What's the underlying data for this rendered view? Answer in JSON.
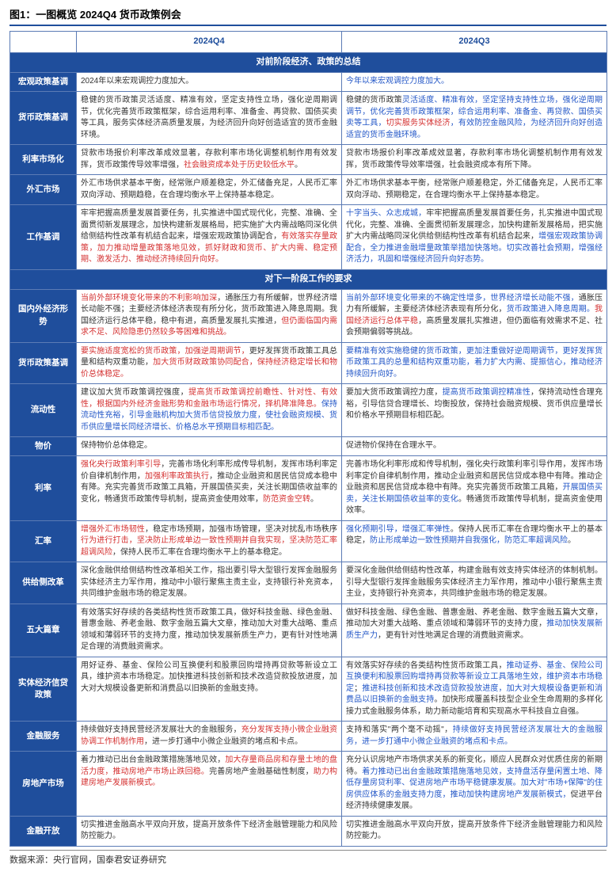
{
  "figureTitle": "图1：一图概览 2024Q4 货币政策例会",
  "colHeaders": [
    "2024Q4",
    "2024Q3"
  ],
  "section1": "对前阶段经济、政策的总结",
  "section2": "对下一阶段工作的要求",
  "sourceLabel": "数据来源：央行官网，国泰君安证券研究",
  "rows1": [
    {
      "label": "宏观政策基调",
      "q4": [
        {
          "t": "2024年以来宏观调控力度加大。",
          "c": ""
        }
      ],
      "q3": [
        {
          "t": "今年以来宏观调控力度加大。",
          "c": "blue"
        }
      ]
    },
    {
      "label": "货币政策基调",
      "q4": [
        {
          "t": "稳健的货币政策灵活适度、精准有效，坚定支持性立场，强化逆周期调节，优化完善货币政策框架，综合运用利率、准备金、再贷款、国债买卖等工具，服务实体经济高质量发展，为经济回升向好创造适宜的货币金融环境。",
          "c": ""
        }
      ],
      "q3": [
        {
          "t": "稳健的货币政策",
          "c": ""
        },
        {
          "t": "灵活适度、精准有效，坚定坚持支持性立场，强化逆周期调节，优化完善货币政策框架，综合运用利率、准备金、再贷款、国债买卖等工具，",
          "c": "blue"
        },
        {
          "t": "切实服务实体经济",
          "c": "red"
        },
        {
          "t": "，有效防控金融风险，为经济回升向好创造适宜的货币金融环境。",
          "c": "blue"
        }
      ]
    },
    {
      "label": "利率市场化",
      "q4": [
        {
          "t": "贷款市场报价利率改革成效显著，存款利率市场化调整机制作用有效发挥，货币政策传导效率增强，",
          "c": ""
        },
        {
          "t": "社会融资成本处于历史较低水平",
          "c": "red"
        },
        {
          "t": "。",
          "c": ""
        }
      ],
      "q3": [
        {
          "t": "贷款市场报价利率改革成效显著，存款利率市场化调整机制作用有效发挥，货币政策传导效率增强，社会融资成本有所下降。",
          "c": ""
        }
      ]
    },
    {
      "label": "外汇市场",
      "q4": [
        {
          "t": "外汇市场供求基本平衡，经常账户顺差稳定，外汇储备充足，人民币汇率双向浮动、预期趋稳，在合理均衡水平上保持基本稳定。",
          "c": ""
        }
      ],
      "q3": [
        {
          "t": "外汇市场供求基本平衡，经常账户顺差稳定，外汇储备充足，人民币汇率双向浮动、预期稳定，在合理均衡水平上保持基本稳定。",
          "c": ""
        }
      ]
    },
    {
      "label": "工作基调",
      "q4": [
        {
          "t": "牢牢把握高质量发展首要任务，扎实推进中国式现代化，完整、准确、全面贯彻新发展理念，加快构建新发展格局，把实施扩大内需战略同深化供给侧结构性改革有机结合起来，增强宏观政策协调配合，",
          "c": ""
        },
        {
          "t": "有效落实存量政策，加力推动增量政策落地见效，抓好财政和货币、扩大内需、稳定预期、激发活力、推动经济持续回升向好。",
          "c": "red"
        }
      ],
      "q3": [
        {
          "t": "十字当头、众志成城，",
          "c": "blue"
        },
        {
          "t": "牢牢把握高质量发展首要任务，扎实推进中国式现代化，完整、准确、全面贯彻新发展理念，加快构建新发展格局，把实施扩大内需战略同深化供给侧结构性改革有机结合起来，",
          "c": ""
        },
        {
          "t": "增强宏观政策协调配合，全力推进金融增量政策举措加快落地。切实改善社会预期，增强经济活力，巩固和增强经济回升向好态势。",
          "c": "blue"
        }
      ]
    }
  ],
  "rows2": [
    {
      "label": "国内外经济形势",
      "q4": [
        {
          "t": "当前外部环境变化带来的不利影响加深",
          "c": "red"
        },
        {
          "t": "，通胀压力有所缓解，世界经济增长动能不强；主要经济体经济表现有所分化，货币政策进入降息周期。我国经济运行总体平稳，稳中有进，高质量发展扎实推进，",
          "c": ""
        },
        {
          "t": "但仍面临国内需求不足、风险隐患仍然较多等困难和挑战。",
          "c": "red"
        }
      ],
      "q3": [
        {
          "t": "当前外部环境变化带来的不确定性增多，世界经济增长动能不强，",
          "c": "blue"
        },
        {
          "t": "通胀压力有所缓解，主要经济体经济表现有所分化，",
          "c": ""
        },
        {
          "t": "货币政策进入降息周期。",
          "c": "blue"
        },
        {
          "t": "我国经济运行总体平稳",
          "c": "red"
        },
        {
          "t": "，高质量发展扎实推进，但仍面临有效需求不足、社会预期偏弱等挑战。",
          "c": ""
        }
      ]
    },
    {
      "label": "货币政策基调",
      "q4": [
        {
          "t": "要实施适度宽松的货币政策，加强逆周期调节，",
          "c": "red"
        },
        {
          "t": "更好发挥货币政策工具总量和结构双重功能，",
          "c": ""
        },
        {
          "t": "加大货币财政政策协同配合，保持经济稳定增长和物价总体稳定。",
          "c": "red"
        }
      ],
      "q3": [
        {
          "t": "要精准有效实施稳健的货币政策，更加注重做好逆周期调节，更好发挥货币政策工具的总量和结构双重功能，着力扩大内需、提振信心，推动经济持续回升向好。",
          "c": "blue"
        }
      ]
    },
    {
      "label": "流动性",
      "q4": [
        {
          "t": "建议加大货币政策调控强度，",
          "c": ""
        },
        {
          "t": "提高货币政策调控前瞻性、针对性、有效性，根据国内外经济金融形势和金融市场运行情况，择机降准降息。",
          "c": "red"
        },
        {
          "t": "保持流动性充裕，引导金融机构加大货币信贷投放力度，使社会融资规模、货币供应量增长同经济增长、价格总水平预期目标相匹配。",
          "c": "blue"
        }
      ],
      "q3": [
        {
          "t": "要加大货币政策调控力度，",
          "c": ""
        },
        {
          "t": "提高货币政策调控精准性",
          "c": "blue"
        },
        {
          "t": "，保持流动性合理充裕，引导信贷合理增长、均衡投放，保持社会融资规模、货币供应量增长和价格水平预期目标相匹配。",
          "c": ""
        }
      ]
    },
    {
      "label": "物价",
      "q4": [
        {
          "t": "保持物价总体稳定。",
          "c": ""
        }
      ],
      "q3": [
        {
          "t": "促进物价保持在合理水平。",
          "c": ""
        }
      ]
    },
    {
      "label": "利率",
      "q4": [
        {
          "t": "强化央行政策利率引导",
          "c": "red"
        },
        {
          "t": "，完善市场化利率形成传导机制，发挥市场利率定价自律机制作用，",
          "c": ""
        },
        {
          "t": "加强利率政策执行",
          "c": "red"
        },
        {
          "t": "，推动企业融资和居民信贷成本稳中有降。充实完善货币政策工具箱，开展国债买卖，关注长期国债收益率的变化，畅通货币政策传导机制，提高资金使用效率，",
          "c": ""
        },
        {
          "t": "防范资金空转",
          "c": "red"
        },
        {
          "t": "。",
          "c": ""
        }
      ],
      "q3": [
        {
          "t": "完善市场化利率形成和传导机制，强化央行政策利率引导作用，发挥市场利率定价自律机制作用，推动企业融资和居民信贷成本稳中有降。推动企业融资和居民信贷成本稳中有降。充实完善货币政策工具箱，",
          "c": ""
        },
        {
          "t": "开展国债买卖，关注长期国债收益率的变化",
          "c": "blue"
        },
        {
          "t": "。畅通货币政策传导机制，提高资金使用效率。",
          "c": ""
        }
      ]
    },
    {
      "label": "汇率",
      "q4": [
        {
          "t": "增强外汇市场韧性",
          "c": "red"
        },
        {
          "t": "，稳定市场预期，加强市场管理，坚决对扰乱市场秩序",
          "c": ""
        },
        {
          "t": "行为进行打击，坚决防止形成单边一致性预期并自我实现，坚决防范汇率超调风险",
          "c": "red"
        },
        {
          "t": "，保持人民币汇率在合理均衡水平上的基本稳定。",
          "c": ""
        }
      ],
      "q3": [
        {
          "t": "强化预期引导，增强汇率弹性",
          "c": "blue"
        },
        {
          "t": "。保持人民币汇率在合理均衡水平上的基本稳定，",
          "c": ""
        },
        {
          "t": "防止形成单边一致性预期并自我强化，防范汇率超调风险",
          "c": "blue"
        },
        {
          "t": "。",
          "c": ""
        }
      ]
    },
    {
      "label": "供给侧改革",
      "q4": [
        {
          "t": "深化金融供给侧结构性改革相关工作，指出要引导大型银行发挥金融服务实体经济主力军作用，推动中小银行聚焦主责主业，支持银行补充资本，共同维护金融市场的稳定发展。",
          "c": ""
        }
      ],
      "q3": [
        {
          "t": "要深化金融供给侧结构性改革，构建金融有效支持实体经济的体制机制。引导大型银行发挥金融服务实体经济主力军作用，推动中小银行聚焦主责主业，支持银行补充资本，共同维护金融市场的稳定发展。",
          "c": ""
        }
      ]
    },
    {
      "label": "五大篇章",
      "q4": [
        {
          "t": "有效落实好存续的各类结构性货币政策工具，做好科技金融、绿色金融、普惠金融、养老金融、数字金融五篇大文章，推动加大对重大战略、重点领域和薄弱环节的支持力度，推动加快发展新质生产力，更有针对性地满足合理的消费融资需求。",
          "c": ""
        }
      ],
      "q3": [
        {
          "t": "做好科技金融、绿色金融、普惠金融、养老金融、数字金融五篇大文章，推动加大对重大战略、重点领域和薄弱环节的支持力度，",
          "c": ""
        },
        {
          "t": "推动加快发展新质生产力",
          "c": "blue"
        },
        {
          "t": "，更有针对性地满足合理的消费融资需求。",
          "c": ""
        }
      ]
    },
    {
      "label": "实体经济信贷政策",
      "q4": [
        {
          "t": "用好证券、基金、保险公司互换便利和股票回购增持再贷款等新设立工具，维护资本市场稳定。加快推进科技创新和技术改造贷款投放进度，加大对大规模设备更新和消费品以旧换新的金融支持。",
          "c": ""
        }
      ],
      "q3": [
        {
          "t": "有效落实好存续的各类结构性货币政策工具，",
          "c": ""
        },
        {
          "t": "推动证券、基金、保险公司互换便利和股票回购增持再贷款等新设立工具落地生效，维护资本市场稳定",
          "c": "blue"
        },
        {
          "t": "；",
          "c": ""
        },
        {
          "t": "推进科技创新和技术改造贷款投放进度，加大对大规模设备更新和消费品以旧换新的金融支持",
          "c": "blue"
        },
        {
          "t": "。加快形成覆盖科技型企业全生命周期的多样化接力式金融服务体系，助力新动能培育和实现高水平科技自立自强。",
          "c": ""
        }
      ]
    },
    {
      "label": "金融服务",
      "q4": [
        {
          "t": "持续做好支持民营经济发展壮大的金融服务，",
          "c": ""
        },
        {
          "t": "充分发挥支持小微企业融资协调工作机制作用",
          "c": "red"
        },
        {
          "t": "，进一步打通中小微企业融资的堵点和卡点。",
          "c": ""
        }
      ],
      "q3": [
        {
          "t": "支持和落实\"两个毫不动摇\"，",
          "c": ""
        },
        {
          "t": "持续做好支持民营经济发展壮大的金融服务，进一步打通中小微企业融资的堵点和卡点。",
          "c": "blue"
        }
      ]
    },
    {
      "label": "房地产市场",
      "q4": [
        {
          "t": "着力推动已出台金融政策措施落地见效，",
          "c": ""
        },
        {
          "t": "加大存量商品房和存量土地的盘活力度，推动房地产市场止跌回稳。",
          "c": "red"
        },
        {
          "t": "完善房地产金融基础性制度，",
          "c": ""
        },
        {
          "t": "助力构建房地产发展新模式。",
          "c": "red"
        }
      ],
      "q3": [
        {
          "t": "充分认识房地产市场供求关系的新变化，顺应人民群众对优质住房的新期待。",
          "c": ""
        },
        {
          "t": "着力推动已出台金融政策措施落地见效，支持盘活存量闲置土地、降低存量房贷利率、促进房地产市场平稳健康发展。加大对\"市场+保障\"的住房供应体系的金融支持力度，推动加快构建房地产发展新模式，",
          "c": "blue"
        },
        {
          "t": "促进平台经济持续健康发展。",
          "c": ""
        }
      ]
    },
    {
      "label": "金融开放",
      "q4": [
        {
          "t": "切实推进金融高水平双向开放，提高开放条件下经济金融管理能力和风险防控能力。",
          "c": ""
        }
      ],
      "q3": [
        {
          "t": "切实推进金融高水平双向开放，提高开放条件下经济金融管理能力和风险防控能力。",
          "c": ""
        }
      ]
    }
  ]
}
